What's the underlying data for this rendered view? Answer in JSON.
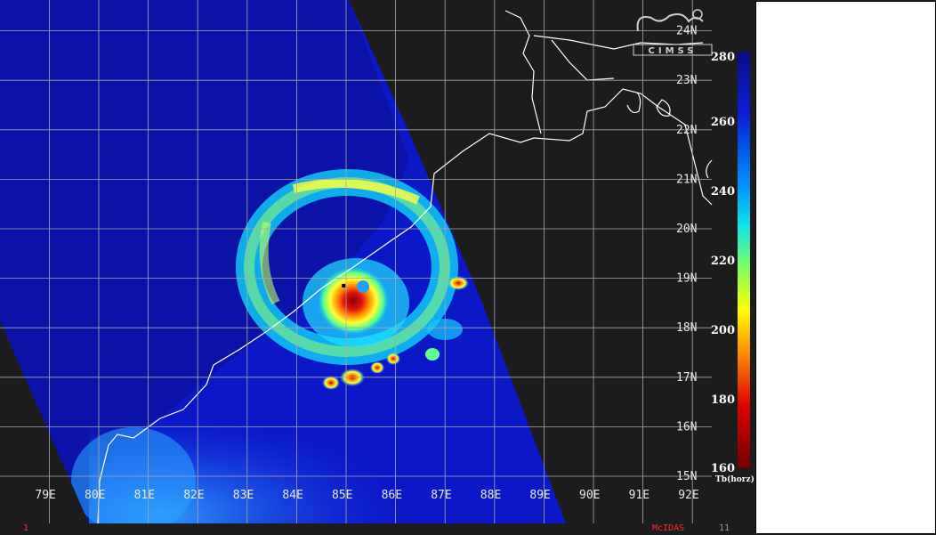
{
  "map": {
    "longitude_labels": [
      "79E",
      "80E",
      "81E",
      "82E",
      "83E",
      "84E",
      "85E",
      "86E",
      "87E",
      "88E",
      "89E",
      "90E",
      "91E",
      "92E"
    ],
    "latitude_labels": [
      "24N",
      "23N",
      "22N",
      "21N",
      "20N",
      "19N",
      "18N",
      "17N",
      "16N",
      "15N"
    ],
    "storm_center": {
      "lon": 84.95,
      "lat": 18.85
    }
  },
  "colorbar": {
    "ticks": [
      "280",
      "260",
      "240",
      "220",
      "200",
      "180",
      "160"
    ],
    "units": "Tb(horz)",
    "range": [
      160,
      280
    ]
  },
  "logo_text": "CIMSS",
  "status": {
    "left": "1",
    "center": "McIDAS",
    "right": "11"
  },
  "colors": {
    "background": "#1c1c1c",
    "grid": "#a8a8a8",
    "coast": "#ffffff",
    "cold": "#8b0000",
    "warm": "#0000aa"
  }
}
